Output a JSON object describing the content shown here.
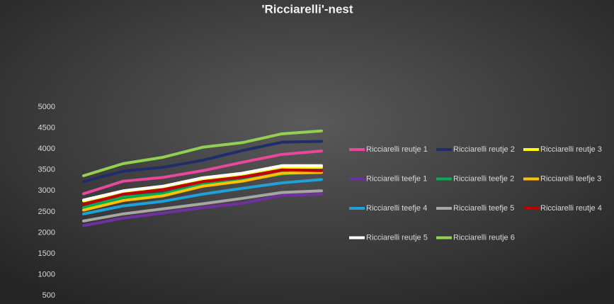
{
  "chart_data": {
    "type": "line",
    "title": "'Ricciarelli'-nest",
    "categories": [
      null,
      null,
      null,
      null,
      null,
      null,
      null
    ],
    "series": [
      {
        "name": "Ricciarelli reutje 1",
        "color": "#e8479b",
        "values": [
          2930,
          3230,
          3320,
          3480,
          3680,
          3870,
          3950
        ]
      },
      {
        "name": "Ricciarelli reutje 2",
        "color": "#1f2d6b",
        "values": [
          3220,
          3470,
          3560,
          3730,
          3960,
          4160,
          4180
        ]
      },
      {
        "name": "Ricciarelli reutje 3",
        "color": "#ffff00",
        "values": [
          2760,
          2970,
          3080,
          3280,
          3390,
          3560,
          3560
        ]
      },
      {
        "name": "Ricciarelli teefje 1",
        "color": "#7030a0",
        "values": [
          2170,
          2350,
          2470,
          2600,
          2700,
          2890,
          2920
        ]
      },
      {
        "name": "Ricciarelli teefje 2",
        "color": "#00b050",
        "values": [
          2600,
          2850,
          2930,
          3150,
          3250,
          3400,
          3480
        ]
      },
      {
        "name": "Ricciarelli teefje 3",
        "color": "#ffc000",
        "values": [
          2540,
          2770,
          2880,
          3110,
          3230,
          3420,
          3440
        ]
      },
      {
        "name": "Ricciarelli teefje 4",
        "color": "#1ea0d8",
        "values": [
          2450,
          2640,
          2750,
          2920,
          3060,
          3190,
          3270
        ]
      },
      {
        "name": "Ricciarelli teefje 5",
        "color": "#a6a6a6",
        "values": [
          2280,
          2450,
          2570,
          2690,
          2820,
          2960,
          3000
        ]
      },
      {
        "name": "Ricciarelli reutje 4",
        "color": "#c00000",
        "values": [
          2680,
          2920,
          3030,
          3220,
          3330,
          3500,
          3480
        ]
      },
      {
        "name": "Ricciarelli reutje 5",
        "color": "#ffffff",
        "values": [
          2780,
          3000,
          3110,
          3310,
          3420,
          3600,
          3600
        ]
      },
      {
        "name": "Ricciarelli reutje 6",
        "color": "#92d050",
        "values": [
          3360,
          3650,
          3800,
          4040,
          4150,
          4360,
          4430
        ]
      }
    ],
    "ylim": [
      300,
      5000
    ],
    "yticks": [
      500,
      1000,
      1500,
      2000,
      2500,
      3000,
      3500,
      4000,
      4500,
      5000
    ],
    "grid": false,
    "legend": "right"
  }
}
